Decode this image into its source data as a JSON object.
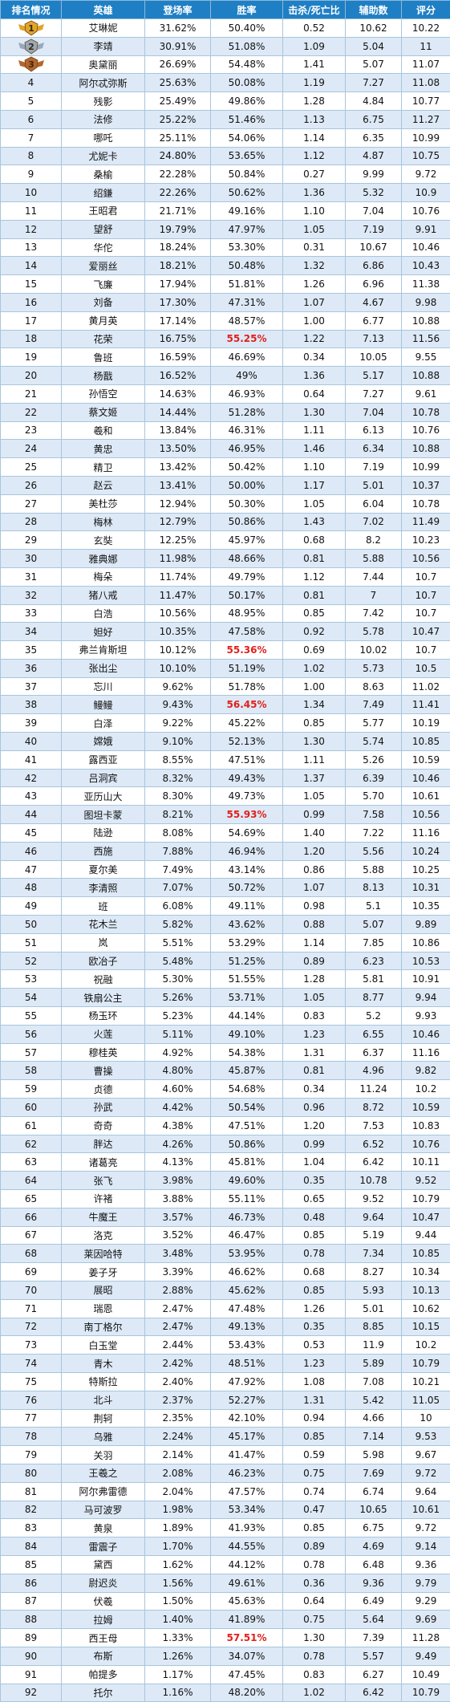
{
  "columns": [
    "排名情况",
    "英雄",
    "登场率",
    "胜率",
    "击杀/死亡比",
    "辅助数",
    "评分"
  ],
  "rows": [
    {
      "rank": "1",
      "hero": "艾琳妮",
      "appear": "31.62%",
      "win": "50.40%",
      "kd": "0.52",
      "assist": "10.62",
      "score": "10.22"
    },
    {
      "rank": "2",
      "hero": "李靖",
      "appear": "30.91%",
      "win": "51.08%",
      "kd": "1.09",
      "assist": "5.04",
      "score": "11"
    },
    {
      "rank": "3",
      "hero": "奥黛丽",
      "appear": "26.69%",
      "win": "54.48%",
      "kd": "1.41",
      "assist": "5.07",
      "score": "11.07"
    },
    {
      "rank": "4",
      "hero": "阿尔忒弥斯",
      "appear": "25.63%",
      "win": "50.08%",
      "kd": "1.19",
      "assist": "7.27",
      "score": "11.08"
    },
    {
      "rank": "5",
      "hero": "残影",
      "appear": "25.49%",
      "win": "49.86%",
      "kd": "1.28",
      "assist": "4.84",
      "score": "10.77"
    },
    {
      "rank": "6",
      "hero": "法修",
      "appear": "25.22%",
      "win": "51.46%",
      "kd": "1.13",
      "assist": "6.75",
      "score": "11.27"
    },
    {
      "rank": "7",
      "hero": "哪吒",
      "appear": "25.11%",
      "win": "54.06%",
      "kd": "1.14",
      "assist": "6.35",
      "score": "10.99"
    },
    {
      "rank": "8",
      "hero": "尤妮卡",
      "appear": "24.80%",
      "win": "53.65%",
      "kd": "1.12",
      "assist": "4.87",
      "score": "10.75"
    },
    {
      "rank": "9",
      "hero": "桑榆",
      "appear": "22.28%",
      "win": "50.84%",
      "kd": "0.27",
      "assist": "9.99",
      "score": "9.72"
    },
    {
      "rank": "10",
      "hero": "绍鎌",
      "appear": "22.26%",
      "win": "50.62%",
      "kd": "1.36",
      "assist": "5.32",
      "score": "10.9"
    },
    {
      "rank": "11",
      "hero": "王昭君",
      "appear": "21.71%",
      "win": "49.16%",
      "kd": "1.10",
      "assist": "7.04",
      "score": "10.76"
    },
    {
      "rank": "12",
      "hero": "望舒",
      "appear": "19.79%",
      "win": "47.97%",
      "kd": "1.05",
      "assist": "7.19",
      "score": "9.91"
    },
    {
      "rank": "13",
      "hero": "华佗",
      "appear": "18.24%",
      "win": "53.30%",
      "kd": "0.31",
      "assist": "10.67",
      "score": "10.46"
    },
    {
      "rank": "14",
      "hero": "爱丽丝",
      "appear": "18.21%",
      "win": "50.48%",
      "kd": "1.32",
      "assist": "6.86",
      "score": "10.43"
    },
    {
      "rank": "15",
      "hero": "飞廉",
      "appear": "17.94%",
      "win": "51.81%",
      "kd": "1.26",
      "assist": "6.96",
      "score": "11.38"
    },
    {
      "rank": "16",
      "hero": "刘备",
      "appear": "17.30%",
      "win": "47.31%",
      "kd": "1.07",
      "assist": "4.67",
      "score": "9.98"
    },
    {
      "rank": "17",
      "hero": "黄月英",
      "appear": "17.14%",
      "win": "48.57%",
      "kd": "1.00",
      "assist": "6.77",
      "score": "10.88"
    },
    {
      "rank": "18",
      "hero": "花荣",
      "appear": "16.75%",
      "win": "55.25%",
      "kd": "1.22",
      "assist": "7.13",
      "score": "11.56",
      "hl": true
    },
    {
      "rank": "19",
      "hero": "鲁班",
      "appear": "16.59%",
      "win": "46.69%",
      "kd": "0.34",
      "assist": "10.05",
      "score": "9.55"
    },
    {
      "rank": "20",
      "hero": "杨戬",
      "appear": "16.52%",
      "win": "49%",
      "kd": "1.36",
      "assist": "5.17",
      "score": "10.88"
    },
    {
      "rank": "21",
      "hero": "孙悟空",
      "appear": "14.63%",
      "win": "46.93%",
      "kd": "0.64",
      "assist": "7.27",
      "score": "9.61"
    },
    {
      "rank": "22",
      "hero": "蔡文姬",
      "appear": "14.44%",
      "win": "51.28%",
      "kd": "1.30",
      "assist": "7.04",
      "score": "10.78"
    },
    {
      "rank": "23",
      "hero": "羲和",
      "appear": "13.84%",
      "win": "46.31%",
      "kd": "1.11",
      "assist": "6.13",
      "score": "10.76"
    },
    {
      "rank": "24",
      "hero": "黄忠",
      "appear": "13.50%",
      "win": "46.95%",
      "kd": "1.46",
      "assist": "6.34",
      "score": "10.88"
    },
    {
      "rank": "25",
      "hero": "精卫",
      "appear": "13.42%",
      "win": "50.42%",
      "kd": "1.10",
      "assist": "7.19",
      "score": "10.99"
    },
    {
      "rank": "26",
      "hero": "赵云",
      "appear": "13.41%",
      "win": "50.00%",
      "kd": "1.17",
      "assist": "5.01",
      "score": "10.37"
    },
    {
      "rank": "27",
      "hero": "美杜莎",
      "appear": "12.94%",
      "win": "50.30%",
      "kd": "1.05",
      "assist": "6.04",
      "score": "10.78"
    },
    {
      "rank": "28",
      "hero": "梅林",
      "appear": "12.79%",
      "win": "50.86%",
      "kd": "1.43",
      "assist": "7.02",
      "score": "11.49"
    },
    {
      "rank": "29",
      "hero": "玄奘",
      "appear": "12.25%",
      "win": "45.97%",
      "kd": "0.68",
      "assist": "8.2",
      "score": "10.23"
    },
    {
      "rank": "30",
      "hero": "雅典娜",
      "appear": "11.98%",
      "win": "48.66%",
      "kd": "0.81",
      "assist": "5.88",
      "score": "10.56"
    },
    {
      "rank": "31",
      "hero": "梅朵",
      "appear": "11.74%",
      "win": "49.79%",
      "kd": "1.12",
      "assist": "7.44",
      "score": "10.7"
    },
    {
      "rank": "32",
      "hero": "猪八戒",
      "appear": "11.47%",
      "win": "50.17%",
      "kd": "0.81",
      "assist": "7",
      "score": "10.7"
    },
    {
      "rank": "33",
      "hero": "白浩",
      "appear": "10.56%",
      "win": "48.95%",
      "kd": "0.85",
      "assist": "7.42",
      "score": "10.7"
    },
    {
      "rank": "34",
      "hero": "妲好",
      "appear": "10.35%",
      "win": "47.58%",
      "kd": "0.92",
      "assist": "5.78",
      "score": "10.47"
    },
    {
      "rank": "35",
      "hero": "弗兰肯斯坦",
      "appear": "10.12%",
      "win": "55.36%",
      "kd": "0.69",
      "assist": "10.02",
      "score": "10.7",
      "hl": true
    },
    {
      "rank": "36",
      "hero": "张出尘",
      "appear": "10.10%",
      "win": "51.19%",
      "kd": "1.02",
      "assist": "5.73",
      "score": "10.5"
    },
    {
      "rank": "37",
      "hero": "忘川",
      "appear": "9.62%",
      "win": "51.78%",
      "kd": "1.00",
      "assist": "8.63",
      "score": "11.02"
    },
    {
      "rank": "38",
      "hero": "鳗鳗",
      "appear": "9.43%",
      "win": "56.45%",
      "kd": "1.34",
      "assist": "7.49",
      "score": "11.41",
      "hl": true
    },
    {
      "rank": "39",
      "hero": "白泽",
      "appear": "9.22%",
      "win": "45.22%",
      "kd": "0.85",
      "assist": "5.77",
      "score": "10.19"
    },
    {
      "rank": "40",
      "hero": "嫦娥",
      "appear": "9.10%",
      "win": "52.13%",
      "kd": "1.30",
      "assist": "5.74",
      "score": "10.85"
    },
    {
      "rank": "41",
      "hero": "露西亚",
      "appear": "8.55%",
      "win": "47.51%",
      "kd": "1.11",
      "assist": "5.26",
      "score": "10.59"
    },
    {
      "rank": "42",
      "hero": "吕洞宾",
      "appear": "8.32%",
      "win": "49.43%",
      "kd": "1.37",
      "assist": "6.39",
      "score": "10.46"
    },
    {
      "rank": "43",
      "hero": "亚历山大",
      "appear": "8.30%",
      "win": "49.73%",
      "kd": "1.05",
      "assist": "5.70",
      "score": "10.61"
    },
    {
      "rank": "44",
      "hero": "图坦卡蒙",
      "appear": "8.21%",
      "win": "55.93%",
      "kd": "0.99",
      "assist": "7.58",
      "score": "10.56",
      "hl": true
    },
    {
      "rank": "45",
      "hero": "陆逊",
      "appear": "8.08%",
      "win": "54.69%",
      "kd": "1.40",
      "assist": "7.22",
      "score": "11.16"
    },
    {
      "rank": "46",
      "hero": "西施",
      "appear": "7.88%",
      "win": "46.94%",
      "kd": "1.20",
      "assist": "5.56",
      "score": "10.24"
    },
    {
      "rank": "47",
      "hero": "夏尔美",
      "appear": "7.49%",
      "win": "43.14%",
      "kd": "0.86",
      "assist": "5.88",
      "score": "10.25"
    },
    {
      "rank": "48",
      "hero": "李清照",
      "appear": "7.07%",
      "win": "50.72%",
      "kd": "1.07",
      "assist": "8.13",
      "score": "10.31"
    },
    {
      "rank": "49",
      "hero": "班",
      "appear": "6.08%",
      "win": "49.11%",
      "kd": "0.98",
      "assist": "5.1",
      "score": "10.35"
    },
    {
      "rank": "50",
      "hero": "花木兰",
      "appear": "5.82%",
      "win": "43.62%",
      "kd": "0.88",
      "assist": "5.07",
      "score": "9.89"
    },
    {
      "rank": "51",
      "hero": "岚",
      "appear": "5.51%",
      "win": "53.29%",
      "kd": "1.14",
      "assist": "7.85",
      "score": "10.86"
    },
    {
      "rank": "52",
      "hero": "欧冶子",
      "appear": "5.48%",
      "win": "51.25%",
      "kd": "0.89",
      "assist": "6.23",
      "score": "10.53"
    },
    {
      "rank": "53",
      "hero": "祝融",
      "appear": "5.30%",
      "win": "51.55%",
      "kd": "1.28",
      "assist": "5.81",
      "score": "10.91"
    },
    {
      "rank": "54",
      "hero": "铁扇公主",
      "appear": "5.26%",
      "win": "53.71%",
      "kd": "1.05",
      "assist": "8.77",
      "score": "9.94"
    },
    {
      "rank": "55",
      "hero": "杨玉环",
      "appear": "5.23%",
      "win": "44.14%",
      "kd": "0.83",
      "assist": "5.2",
      "score": "9.93"
    },
    {
      "rank": "56",
      "hero": "火莲",
      "appear": "5.11%",
      "win": "49.10%",
      "kd": "1.23",
      "assist": "6.55",
      "score": "10.46"
    },
    {
      "rank": "57",
      "hero": "穆桂英",
      "appear": "4.92%",
      "win": "54.38%",
      "kd": "1.31",
      "assist": "6.37",
      "score": "11.16"
    },
    {
      "rank": "58",
      "hero": "曹操",
      "appear": "4.80%",
      "win": "45.87%",
      "kd": "0.81",
      "assist": "4.96",
      "score": "9.82"
    },
    {
      "rank": "59",
      "hero": "贞德",
      "appear": "4.60%",
      "win": "54.68%",
      "kd": "0.34",
      "assist": "11.24",
      "score": "10.2"
    },
    {
      "rank": "60",
      "hero": "孙武",
      "appear": "4.42%",
      "win": "50.54%",
      "kd": "0.96",
      "assist": "8.72",
      "score": "10.59"
    },
    {
      "rank": "61",
      "hero": "奇奇",
      "appear": "4.38%",
      "win": "47.51%",
      "kd": "1.20",
      "assist": "7.53",
      "score": "10.83"
    },
    {
      "rank": "62",
      "hero": "胖达",
      "appear": "4.26%",
      "win": "50.86%",
      "kd": "0.99",
      "assist": "6.52",
      "score": "10.76"
    },
    {
      "rank": "63",
      "hero": "诸葛亮",
      "appear": "4.13%",
      "win": "45.81%",
      "kd": "1.04",
      "assist": "6.42",
      "score": "10.11"
    },
    {
      "rank": "64",
      "hero": "张飞",
      "appear": "3.98%",
      "win": "49.60%",
      "kd": "0.35",
      "assist": "10.78",
      "score": "9.52"
    },
    {
      "rank": "65",
      "hero": "许褚",
      "appear": "3.88%",
      "win": "55.11%",
      "kd": "0.65",
      "assist": "9.52",
      "score": "10.79"
    },
    {
      "rank": "66",
      "hero": "牛魔王",
      "appear": "3.57%",
      "win": "46.73%",
      "kd": "0.48",
      "assist": "9.64",
      "score": "10.47"
    },
    {
      "rank": "67",
      "hero": "洛克",
      "appear": "3.52%",
      "win": "46.47%",
      "kd": "0.85",
      "assist": "5.19",
      "score": "9.44"
    },
    {
      "rank": "68",
      "hero": "莱因哈特",
      "appear": "3.48%",
      "win": "53.95%",
      "kd": "0.78",
      "assist": "7.34",
      "score": "10.85"
    },
    {
      "rank": "69",
      "hero": "姜子牙",
      "appear": "3.39%",
      "win": "46.62%",
      "kd": "0.68",
      "assist": "8.27",
      "score": "10.34"
    },
    {
      "rank": "70",
      "hero": "展昭",
      "appear": "2.88%",
      "win": "45.62%",
      "kd": "0.85",
      "assist": "5.93",
      "score": "10.13"
    },
    {
      "rank": "71",
      "hero": "瑞恩",
      "appear": "2.47%",
      "win": "47.48%",
      "kd": "1.26",
      "assist": "5.01",
      "score": "10.62"
    },
    {
      "rank": "72",
      "hero": "南丁格尔",
      "appear": "2.47%",
      "win": "49.13%",
      "kd": "0.35",
      "assist": "8.85",
      "score": "10.15"
    },
    {
      "rank": "73",
      "hero": "白玉堂",
      "appear": "2.44%",
      "win": "53.43%",
      "kd": "0.53",
      "assist": "11.9",
      "score": "10.2"
    },
    {
      "rank": "74",
      "hero": "青木",
      "appear": "2.42%",
      "win": "48.51%",
      "kd": "1.23",
      "assist": "5.89",
      "score": "10.79"
    },
    {
      "rank": "75",
      "hero": "特斯拉",
      "appear": "2.40%",
      "win": "47.92%",
      "kd": "1.08",
      "assist": "7.08",
      "score": "10.21"
    },
    {
      "rank": "76",
      "hero": "北斗",
      "appear": "2.37%",
      "win": "52.27%",
      "kd": "1.31",
      "assist": "5.42",
      "score": "11.05"
    },
    {
      "rank": "77",
      "hero": "荆轲",
      "appear": "2.35%",
      "win": "42.10%",
      "kd": "0.94",
      "assist": "4.66",
      "score": "10"
    },
    {
      "rank": "78",
      "hero": "乌雅",
      "appear": "2.24%",
      "win": "45.17%",
      "kd": "0.85",
      "assist": "7.14",
      "score": "9.53"
    },
    {
      "rank": "79",
      "hero": "关羽",
      "appear": "2.14%",
      "win": "41.47%",
      "kd": "0.59",
      "assist": "5.98",
      "score": "9.67"
    },
    {
      "rank": "80",
      "hero": "王羲之",
      "appear": "2.08%",
      "win": "46.23%",
      "kd": "0.75",
      "assist": "7.69",
      "score": "9.72"
    },
    {
      "rank": "81",
      "hero": "阿尔弗雷德",
      "appear": "2.04%",
      "win": "47.57%",
      "kd": "0.74",
      "assist": "6.74",
      "score": "9.64"
    },
    {
      "rank": "82",
      "hero": "马可波罗",
      "appear": "1.98%",
      "win": "53.34%",
      "kd": "0.47",
      "assist": "10.65",
      "score": "10.61"
    },
    {
      "rank": "83",
      "hero": "黄泉",
      "appear": "1.89%",
      "win": "41.93%",
      "kd": "0.85",
      "assist": "6.75",
      "score": "9.72"
    },
    {
      "rank": "84",
      "hero": "雷震子",
      "appear": "1.70%",
      "win": "44.55%",
      "kd": "0.89",
      "assist": "4.69",
      "score": "9.14"
    },
    {
      "rank": "85",
      "hero": "黛西",
      "appear": "1.62%",
      "win": "44.12%",
      "kd": "0.78",
      "assist": "6.48",
      "score": "9.36"
    },
    {
      "rank": "86",
      "hero": "尉迟炎",
      "appear": "1.56%",
      "win": "49.61%",
      "kd": "0.36",
      "assist": "9.36",
      "score": "9.79"
    },
    {
      "rank": "87",
      "hero": "伏羲",
      "appear": "1.50%",
      "win": "45.63%",
      "kd": "0.64",
      "assist": "6.49",
      "score": "9.29"
    },
    {
      "rank": "88",
      "hero": "拉姆",
      "appear": "1.40%",
      "win": "41.89%",
      "kd": "0.75",
      "assist": "5.64",
      "score": "9.69"
    },
    {
      "rank": "89",
      "hero": "西王母",
      "appear": "1.33%",
      "win": "57.51%",
      "kd": "1.30",
      "assist": "7.39",
      "score": "11.28",
      "hl": true
    },
    {
      "rank": "90",
      "hero": "布斯",
      "appear": "1.26%",
      "win": "34.07%",
      "kd": "0.78",
      "assist": "5.57",
      "score": "9.49"
    },
    {
      "rank": "91",
      "hero": "帕提多",
      "appear": "1.17%",
      "win": "47.45%",
      "kd": "0.83",
      "assist": "6.27",
      "score": "10.49"
    },
    {
      "rank": "92",
      "hero": "托尔",
      "appear": "1.16%",
      "win": "48.20%",
      "kd": "1.02",
      "assist": "6.42",
      "score": "10.79"
    }
  ],
  "colors": {
    "header_bg": "#1f7fc4",
    "header_text": "#ffffff",
    "row_alt": "#dde9f6",
    "row": "#ffffff",
    "highlight": "#e0201a",
    "gold_medal": "#e2a52b",
    "silver_medal": "#9aa8bc",
    "bronze_medal": "#b6652e"
  }
}
